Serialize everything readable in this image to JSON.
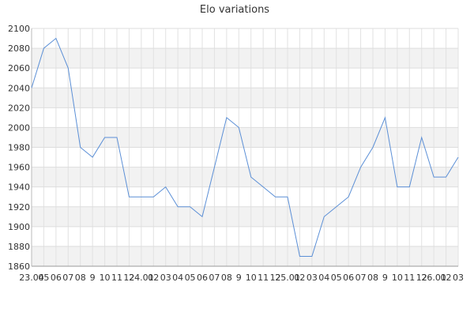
{
  "chart_data": {
    "type": "line",
    "title": "Elo variations",
    "xlabel": "",
    "ylabel": "",
    "ylim": [
      1860,
      2100
    ],
    "yticks": [
      1860,
      1880,
      1900,
      1920,
      1940,
      1960,
      1980,
      2000,
      2020,
      2040,
      2060,
      2080,
      2100
    ],
    "x_tick_labels": [
      "23.04",
      "05",
      "06",
      "07",
      "08",
      "9",
      "10",
      "11",
      "12",
      "24.01",
      "02",
      "03",
      "04",
      "05",
      "06",
      "07",
      "08",
      "9",
      "10",
      "11",
      "12",
      "25.01",
      "02",
      "03",
      "04",
      "05",
      "06",
      "07",
      "08",
      "9",
      "10",
      "11",
      "12",
      "26.01",
      "02",
      "03"
    ],
    "grid": true,
    "line_color": "#5b8fd6",
    "series": [
      {
        "values": [
          2040,
          2080,
          2090,
          2060,
          1980,
          1970,
          1990,
          1990,
          1930,
          1930,
          1930,
          1940,
          1920,
          1920,
          1910,
          1960,
          2010,
          2000,
          1950,
          1940,
          1930,
          1930,
          1870,
          1870,
          1910,
          1920,
          1930,
          1960,
          1980,
          2010,
          1940,
          1940,
          1990,
          1950,
          1950,
          1970
        ]
      }
    ]
  }
}
